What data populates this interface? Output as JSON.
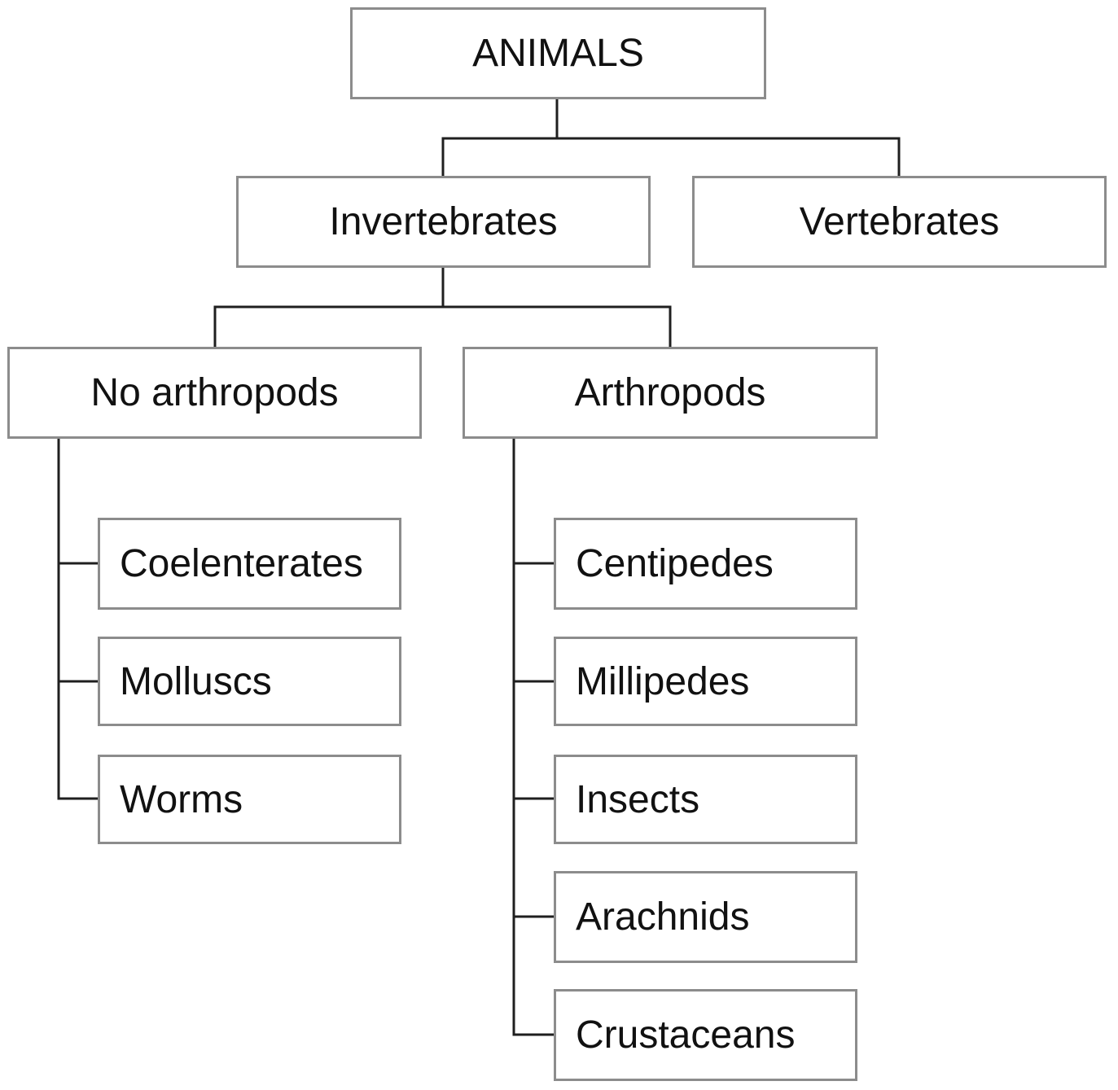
{
  "tree": {
    "root": "ANIMALS",
    "level1": {
      "invertebrates": "Invertebrates",
      "vertebrates": "Vertebrates"
    },
    "level2": {
      "no_arthropods": "No arthropods",
      "arthropods": "Arthropods"
    },
    "no_arthropods_children": [
      "Coelenterates",
      "Molluscs",
      "Worms"
    ],
    "arthropods_children": [
      "Centipedes",
      "Millipedes",
      "Insects",
      "Arachnids",
      "Crustaceans"
    ]
  },
  "colors": {
    "box_border": "#8c8c8c",
    "connector": "#1f1f1f",
    "text": "#111111",
    "background": "#ffffff"
  }
}
